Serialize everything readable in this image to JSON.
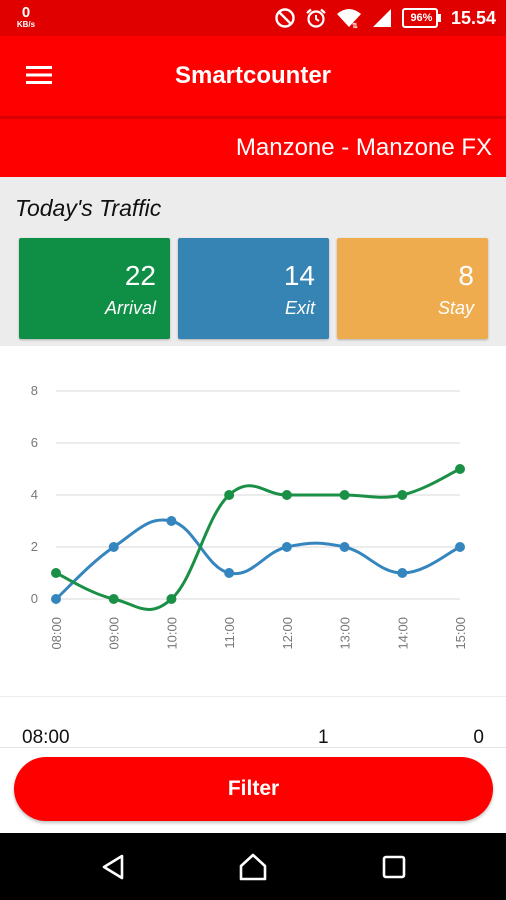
{
  "status_bar": {
    "net_speed_value": "0",
    "net_speed_unit": "KB/s",
    "battery_percent": "96%",
    "time": "15.54",
    "icons": [
      "do-not-disturb-icon",
      "alarm-icon",
      "wifi-icon",
      "signal-icon",
      "battery-icon"
    ]
  },
  "app_bar": {
    "title": "Smartcounter",
    "menu_icon": "hamburger-menu-icon"
  },
  "location": {
    "name": "Manzone - Manzone FX"
  },
  "traffic": {
    "title": "Today's Traffic",
    "cards": [
      {
        "value": "22",
        "label": "Arrival",
        "color": "#0e8f45"
      },
      {
        "value": "14",
        "label": "Exit",
        "color": "#3584b3"
      },
      {
        "value": "8",
        "label": "Stay",
        "color": "#efac4e"
      }
    ]
  },
  "chart_data": {
    "type": "line",
    "categories": [
      "08:00",
      "09:00",
      "10:00",
      "11:00",
      "12:00",
      "13:00",
      "14:00",
      "15:00"
    ],
    "ylim": [
      0,
      8
    ],
    "yticks": [
      0,
      2,
      4,
      6,
      8
    ],
    "grid": true,
    "smooth": true,
    "series": [
      {
        "color": "#3586bf",
        "values": [
          0,
          2,
          3,
          1,
          2,
          2,
          1,
          2
        ]
      },
      {
        "color": "#1a8f46",
        "values": [
          1,
          0,
          0,
          4,
          4,
          4,
          4,
          5
        ]
      }
    ]
  },
  "table": {
    "rows": [
      {
        "time": "08:00",
        "col2": "1",
        "col3": "0"
      }
    ]
  },
  "footer": {
    "filter_label": "Filter"
  },
  "colors": {
    "primary": "#ff0000",
    "status_bar": "#e00000"
  }
}
